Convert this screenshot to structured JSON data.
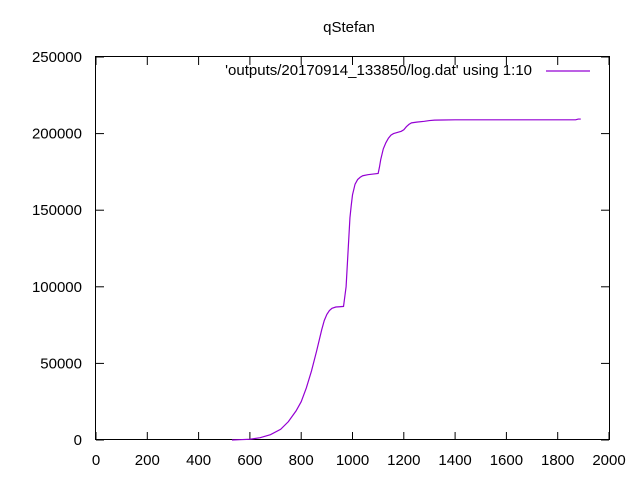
{
  "chart_data": {
    "type": "line",
    "title": "qStefan",
    "xlabel": "",
    "ylabel": "",
    "xlim": [
      0,
      2000
    ],
    "ylim": [
      0,
      250000
    ],
    "x_ticks": [
      0,
      200,
      400,
      600,
      800,
      1000,
      1200,
      1400,
      1600,
      1800,
      2000
    ],
    "y_ticks": [
      0,
      50000,
      100000,
      150000,
      200000,
      250000
    ],
    "grid": false,
    "legend_position": "top-right",
    "series": [
      {
        "name": "'outputs/20170914_133850/log.dat' using 1:10",
        "color": "#9400d3",
        "x": [
          530,
          560,
          600,
          640,
          680,
          720,
          750,
          780,
          800,
          820,
          840,
          860,
          880,
          890,
          900,
          910,
          920,
          935,
          950,
          965,
          975,
          980,
          985,
          990,
          995,
          1000,
          1010,
          1020,
          1030,
          1040,
          1060,
          1080,
          1100,
          1105,
          1110,
          1120,
          1130,
          1140,
          1150,
          1160,
          1170,
          1180,
          1190,
          1200,
          1210,
          1220,
          1230,
          1250,
          1280,
          1300,
          1320,
          1350,
          1400,
          1500,
          1600,
          1700,
          1800,
          1870,
          1880,
          1890
        ],
        "y": [
          0,
          200,
          500,
          1500,
          3500,
          7000,
          12000,
          19000,
          25000,
          34000,
          45000,
          58000,
          72000,
          78000,
          82000,
          84500,
          86000,
          86800,
          87000,
          87200,
          100000,
          115000,
          130000,
          145000,
          153000,
          160000,
          167000,
          170000,
          171500,
          172500,
          173200,
          173600,
          174000,
          178000,
          183000,
          190000,
          194000,
          197000,
          199000,
          200000,
          200500,
          201000,
          201500,
          202500,
          204500,
          206000,
          207000,
          207500,
          208000,
          208500,
          208800,
          208900,
          209000,
          209000,
          209000,
          209000,
          209000,
          209000,
          209500,
          209500
        ]
      }
    ]
  }
}
